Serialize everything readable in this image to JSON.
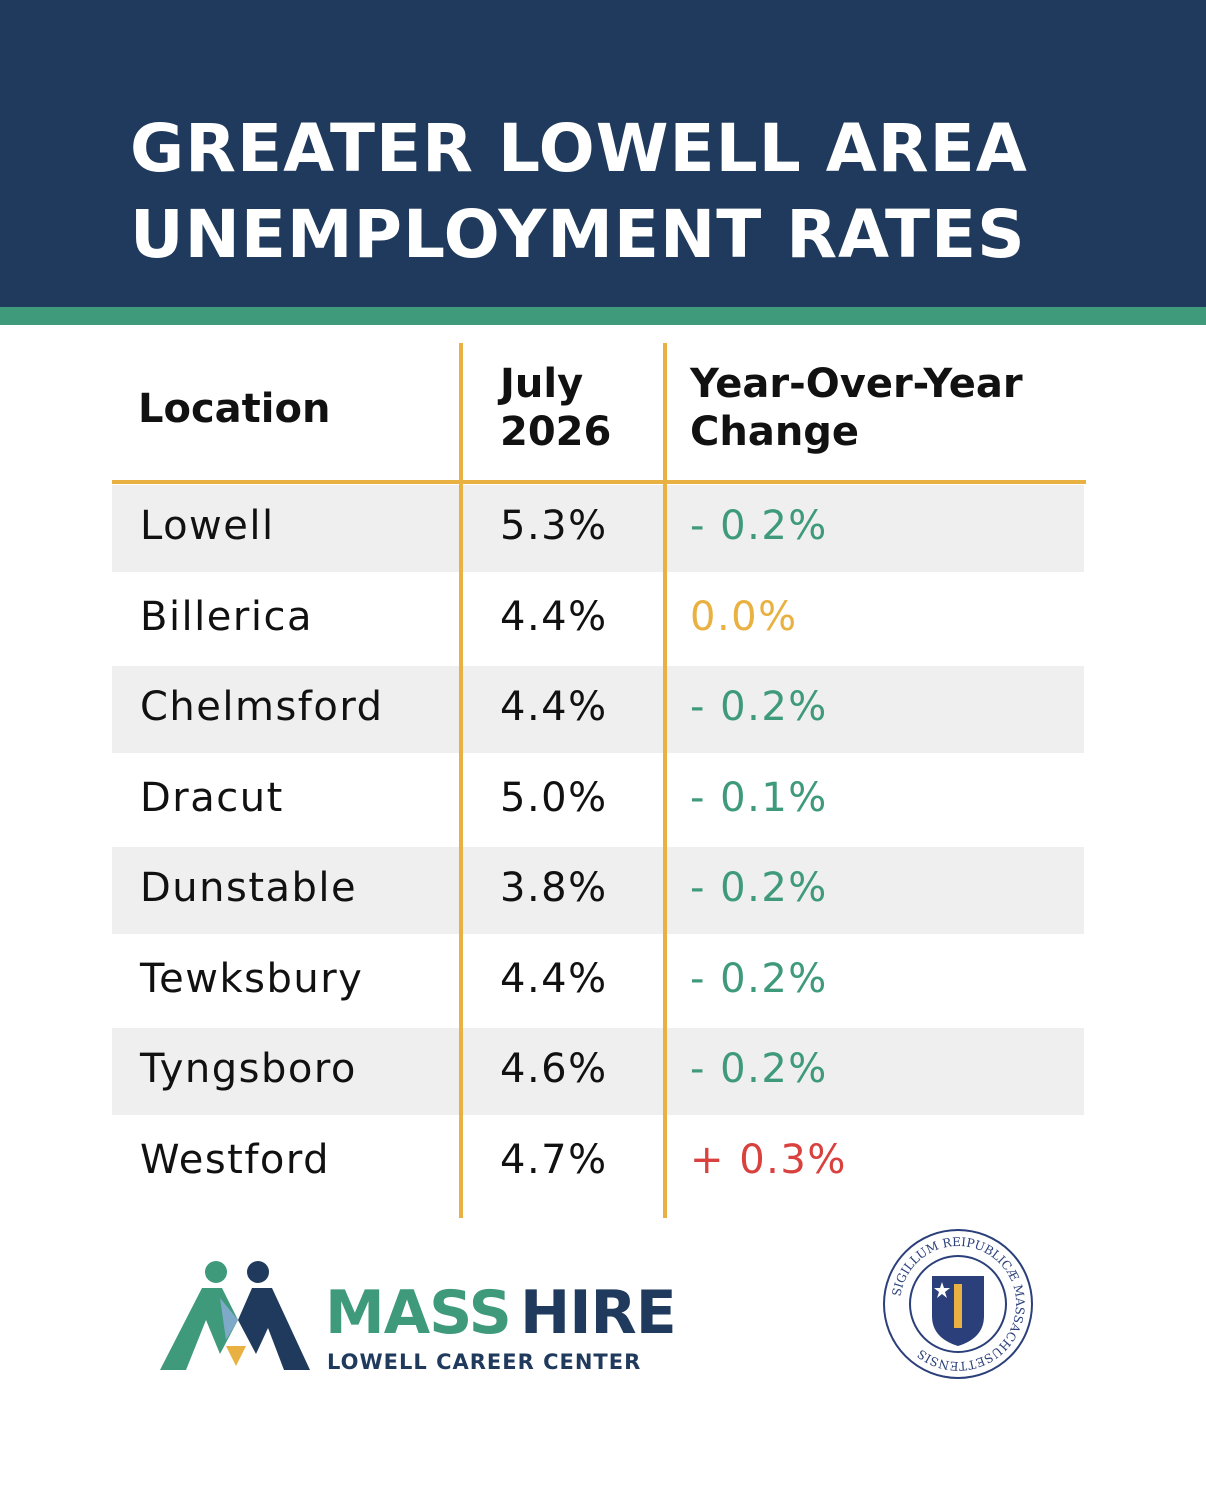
{
  "header": {
    "title_lines": [
      "GREATER LOWELL AREA",
      "UNEMPLOYMENT RATES"
    ]
  },
  "table": {
    "columns": [
      "Location",
      "July 2026",
      "Year-Over-Year Change"
    ],
    "rows": [
      {
        "location": "Lowell",
        "rate": "5.3%",
        "change": "- 0.2%",
        "color": "#3f9a7c"
      },
      {
        "location": "Billerica",
        "rate": "4.4%",
        "change": "0.0%",
        "color": "#e8b142"
      },
      {
        "location": "Chelmsford",
        "rate": "4.4%",
        "change": "- 0.2%",
        "color": "#3f9a7c"
      },
      {
        "location": "Dracut",
        "rate": "5.0%",
        "change": "- 0.1%",
        "color": "#3f9a7c"
      },
      {
        "location": "Dunstable",
        "rate": "3.8%",
        "change": "- 0.2%",
        "color": "#3f9a7c"
      },
      {
        "location": "Tewksbury",
        "rate": "4.4%",
        "change": "- 0.2%",
        "color": "#3f9a7c"
      },
      {
        "location": "Tyngsboro",
        "rate": "4.6%",
        "change": "- 0.2%",
        "color": "#3f9a7c"
      },
      {
        "location": "Westford",
        "rate": "4.7%",
        "change": "+ 0.3%",
        "color": "#d9413f"
      }
    ]
  },
  "footer": {
    "brand_a": "MASS",
    "brand_b": "HIRE",
    "brand_sub": "LOWELL CAREER CENTER",
    "seal_text": "SIGILLUM REIPUBLICÆ MASSACHUSETTENSIS"
  }
}
